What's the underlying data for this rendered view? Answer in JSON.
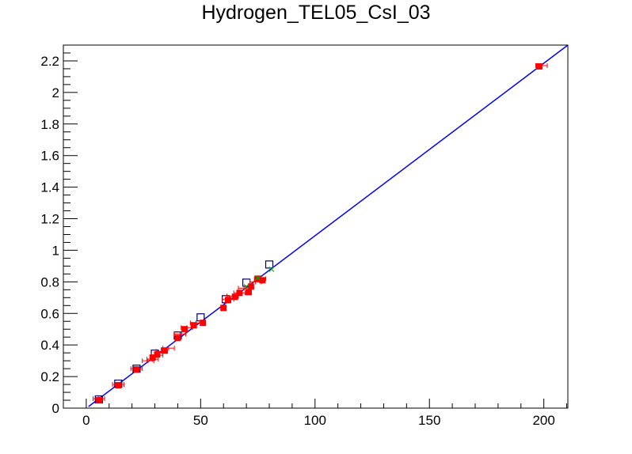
{
  "chart_data": {
    "type": "scatter",
    "title": "Hydrogen_TEL05_CsI_03",
    "xlabel": "",
    "ylabel": "",
    "xlim": [
      -10,
      210.5
    ],
    "ylim": [
      0,
      2.3
    ],
    "x_ticks": [
      0,
      50,
      100,
      150,
      200
    ],
    "x_tick_labels": [
      "0",
      "50",
      "100",
      "150",
      "200"
    ],
    "y_ticks": [
      0,
      0.2,
      0.4,
      0.6,
      0.8,
      1.0,
      1.2,
      1.4,
      1.6,
      1.8,
      2.0,
      2.2
    ],
    "y_tick_labels": [
      "0",
      "0.2",
      "0.4",
      "0.6",
      "0.8",
      "1",
      "1.2",
      "1.4",
      "1.6",
      "1.8",
      "2",
      "2.2"
    ],
    "x_minor_step": 10,
    "y_minor_step": 0.05,
    "grid": false,
    "colors": {
      "fit_line": "#0000ff",
      "points_filled": "#ff0000",
      "points_open": "#000066",
      "error_bars": "#ff0000",
      "green_marker": "#00aa00",
      "axes": "#000000"
    },
    "series": [
      {
        "marker": "line",
        "points": [
          [
            1,
            0.01
          ],
          [
            210.5,
            2.3
          ]
        ]
      },
      {
        "marker": "open-square",
        "points": [
          [
            5.5,
            0.055
          ],
          [
            14,
            0.155
          ],
          [
            22,
            0.25
          ],
          [
            30,
            0.345
          ],
          [
            40,
            0.46
          ],
          [
            50,
            0.575
          ],
          [
            61,
            0.69
          ],
          [
            70,
            0.795
          ],
          [
            80,
            0.91
          ]
        ]
      },
      {
        "marker": "filled-square",
        "points": [
          [
            5.5,
            0.05
          ],
          [
            14,
            0.145
          ],
          [
            22,
            0.245
          ],
          [
            29,
            0.32
          ],
          [
            31,
            0.34
          ],
          [
            34,
            0.365
          ],
          [
            40,
            0.445
          ],
          [
            43,
            0.5
          ],
          [
            47,
            0.525
          ],
          [
            51,
            0.54
          ],
          [
            60,
            0.635
          ],
          [
            62,
            0.685
          ],
          [
            65,
            0.705
          ],
          [
            67,
            0.73
          ],
          [
            71,
            0.735
          ],
          [
            72,
            0.77
          ],
          [
            75,
            0.82
          ],
          [
            77,
            0.81
          ],
          [
            198,
            2.165
          ]
        ]
      },
      {
        "marker": "error-bar",
        "points": [
          [
            5.5,
            0.06
          ],
          [
            14,
            0.15
          ],
          [
            22,
            0.25
          ],
          [
            27,
            0.3
          ],
          [
            29,
            0.31
          ],
          [
            31,
            0.335
          ],
          [
            33,
            0.36
          ],
          [
            36,
            0.38
          ],
          [
            41,
            0.47
          ],
          [
            44,
            0.51
          ],
          [
            48,
            0.54
          ],
          [
            62,
            0.69
          ],
          [
            64,
            0.71
          ],
          [
            67,
            0.73
          ],
          [
            69,
            0.76
          ],
          [
            74,
            0.8
          ],
          [
            76,
            0.82
          ],
          [
            199,
            2.17
          ]
        ],
        "xerr": 2.5
      },
      {
        "marker": "cross",
        "points": [
          [
            70,
            0.77
          ],
          [
            75,
            0.825
          ],
          [
            81,
            0.88
          ]
        ]
      }
    ]
  }
}
